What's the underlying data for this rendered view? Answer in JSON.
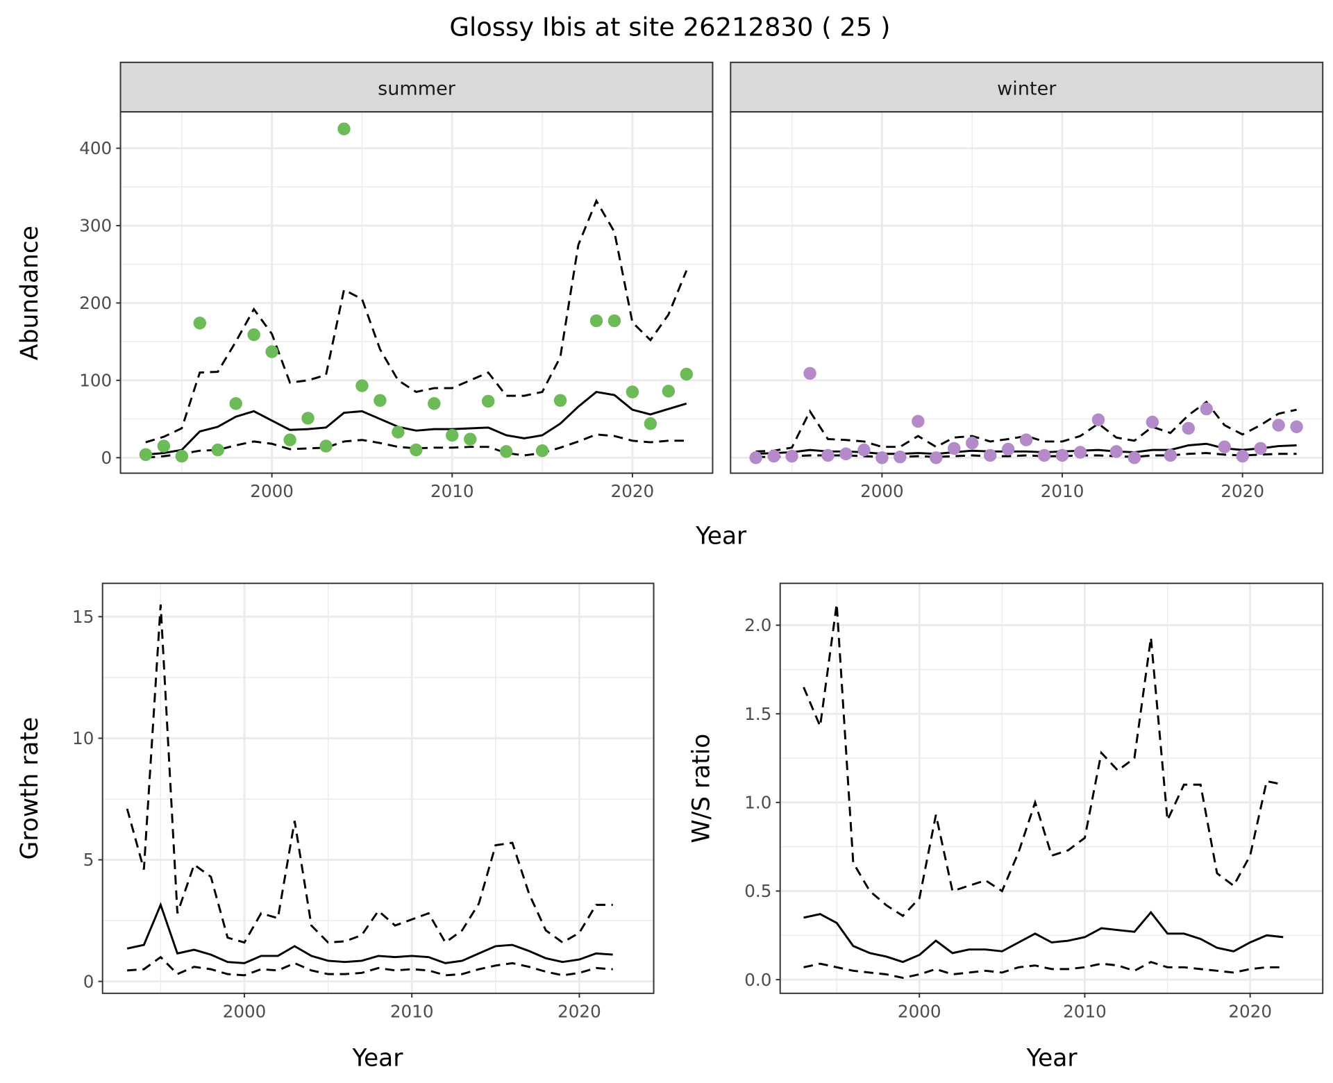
{
  "title": "Glossy Ibis at site 26212830 ( 25 )",
  "colors": {
    "summer": "#6cbb58",
    "winter": "#b48ac8",
    "line": "#000000"
  },
  "chart_data": [
    {
      "type": "line",
      "id": "abundance",
      "facets": [
        "summer",
        "winter"
      ],
      "xlabel": "Year",
      "ylabel": "Abundance",
      "xlim": [
        1991.6,
        2024.45
      ],
      "ylim": [
        -20,
        447
      ],
      "xticks": [
        2000,
        2010,
        2020
      ],
      "yticks": [
        0,
        100,
        200,
        300,
        400
      ],
      "years": [
        1993,
        1994,
        1995,
        1996,
        1997,
        1998,
        1999,
        2000,
        2001,
        2002,
        2003,
        2004,
        2005,
        2006,
        2007,
        2008,
        2009,
        2010,
        2011,
        2012,
        2013,
        2014,
        2015,
        2016,
        2017,
        2018,
        2019,
        2020,
        2021,
        2022,
        2023
      ],
      "panels": {
        "summer": {
          "label": "summer",
          "points": [
            4,
            15,
            2,
            174,
            10,
            70,
            159,
            137,
            23,
            51,
            15,
            425,
            93,
            74,
            33,
            10,
            70,
            29,
            24,
            73,
            8,
            null,
            9,
            74,
            null,
            177,
            177,
            85,
            44,
            86,
            108
          ],
          "mean": [
            4,
            6,
            10,
            34,
            40,
            53,
            60,
            48,
            36,
            37,
            39,
            58,
            60,
            50,
            40,
            35,
            37,
            37,
            38,
            39,
            29,
            25,
            29,
            44,
            66,
            85,
            81,
            62,
            56,
            63,
            70
          ],
          "upper": [
            20,
            27,
            38,
            110,
            111,
            150,
            192,
            160,
            97,
            100,
            107,
            217,
            205,
            140,
            100,
            85,
            90,
            90,
            100,
            110,
            80,
            80,
            85,
            130,
            275,
            332,
            292,
            175,
            152,
            185,
            242
          ],
          "lower": [
            0,
            2,
            5,
            9,
            10,
            16,
            21,
            18,
            11,
            12,
            13,
            21,
            23,
            19,
            14,
            12,
            13,
            13,
            14,
            14,
            6,
            3,
            6,
            13,
            21,
            30,
            28,
            22,
            20,
            22,
            22
          ]
        },
        "winter": {
          "label": "winter",
          "points": [
            0,
            2,
            2,
            109,
            3,
            5,
            10,
            0,
            1,
            47,
            0,
            12,
            19,
            3,
            11,
            23,
            3,
            3,
            7,
            49,
            8,
            0,
            46,
            3,
            38,
            63,
            14,
            2,
            12,
            42,
            40
          ],
          "mean": [
            5,
            6,
            7,
            10,
            8,
            8,
            7,
            5,
            5,
            6,
            5,
            7,
            9,
            8,
            8,
            8,
            7,
            8,
            9,
            10,
            8,
            7,
            10,
            10,
            16,
            18,
            12,
            10,
            12,
            15,
            16
          ],
          "upper": [
            8,
            9,
            13,
            60,
            24,
            23,
            21,
            14,
            14,
            28,
            14,
            26,
            28,
            21,
            24,
            28,
            21,
            21,
            28,
            44,
            26,
            22,
            40,
            32,
            55,
            72,
            42,
            30,
            42,
            57,
            62
          ],
          "lower": [
            1,
            1,
            2,
            3,
            3,
            3,
            2,
            1,
            1,
            2,
            1,
            2,
            3,
            2,
            2,
            3,
            2,
            2,
            3,
            3,
            2,
            1,
            3,
            3,
            5,
            6,
            4,
            3,
            4,
            5,
            5
          ]
        }
      }
    },
    {
      "type": "line",
      "id": "growth",
      "xlabel": "Year",
      "ylabel": "Growth rate",
      "xlim": [
        1991.53,
        2024.44
      ],
      "ylim": [
        -0.49,
        16.37
      ],
      "xticks": [
        2000,
        2010,
        2020
      ],
      "yticks": [
        0,
        5,
        10,
        15
      ],
      "years": [
        1993,
        1994,
        1995,
        1996,
        1997,
        1998,
        1999,
        2000,
        2001,
        2002,
        2003,
        2004,
        2005,
        2006,
        2007,
        2008,
        2009,
        2010,
        2011,
        2012,
        2013,
        2014,
        2015,
        2016,
        2017,
        2018,
        2019,
        2020,
        2021,
        2022
      ],
      "mean": [
        1.35,
        1.5,
        3.15,
        1.15,
        1.3,
        1.1,
        0.8,
        0.75,
        1.05,
        1.05,
        1.45,
        1.05,
        0.85,
        0.8,
        0.85,
        1.05,
        1.0,
        1.05,
        1.0,
        0.75,
        0.85,
        1.15,
        1.45,
        1.5,
        1.25,
        0.95,
        0.8,
        0.9,
        1.15,
        1.1
      ],
      "upper": [
        7.1,
        4.6,
        15.5,
        2.8,
        4.8,
        4.3,
        1.8,
        1.6,
        2.8,
        2.6,
        6.6,
        2.3,
        1.6,
        1.65,
        1.9,
        2.9,
        2.3,
        2.55,
        2.8,
        1.6,
        2.1,
        3.2,
        5.6,
        5.7,
        3.6,
        2.1,
        1.6,
        2.0,
        3.15,
        3.15
      ],
      "lower": [
        0.45,
        0.5,
        1.0,
        0.3,
        0.6,
        0.5,
        0.3,
        0.25,
        0.5,
        0.45,
        0.75,
        0.45,
        0.3,
        0.3,
        0.35,
        0.55,
        0.45,
        0.5,
        0.45,
        0.25,
        0.3,
        0.5,
        0.65,
        0.75,
        0.6,
        0.4,
        0.25,
        0.35,
        0.55,
        0.5
      ]
    },
    {
      "type": "line",
      "id": "ratio",
      "xlabel": "Year",
      "ylabel": "W/S ratio",
      "xlim": [
        1991.58,
        2024.39
      ],
      "ylim": [
        -0.077,
        2.236
      ],
      "xticks": [
        2000,
        2010,
        2020
      ],
      "yticks": [
        0.0,
        0.5,
        1.0,
        1.5,
        2.0
      ],
      "ytick_labels": [
        "0.0",
        "0.5",
        "1.0",
        "1.5",
        "2.0"
      ],
      "years": [
        1993,
        1994,
        1995,
        1996,
        1997,
        1998,
        1999,
        2000,
        2001,
        2002,
        2003,
        2004,
        2005,
        2006,
        2007,
        2008,
        2009,
        2010,
        2011,
        2012,
        2013,
        2014,
        2015,
        2016,
        2017,
        2018,
        2019,
        2020,
        2021,
        2022
      ],
      "mean": [
        0.35,
        0.37,
        0.32,
        0.19,
        0.15,
        0.13,
        0.1,
        0.14,
        0.22,
        0.15,
        0.17,
        0.17,
        0.16,
        0.21,
        0.26,
        0.21,
        0.22,
        0.24,
        0.29,
        0.28,
        0.27,
        0.38,
        0.26,
        0.26,
        0.23,
        0.18,
        0.16,
        0.21,
        0.25,
        0.24
      ],
      "upper": [
        1.65,
        1.43,
        2.12,
        0.66,
        0.5,
        0.42,
        0.36,
        0.46,
        0.93,
        0.5,
        0.53,
        0.56,
        0.5,
        0.72,
        1.0,
        0.7,
        0.73,
        0.8,
        1.28,
        1.18,
        1.25,
        1.93,
        0.9,
        1.1,
        1.1,
        0.6,
        0.53,
        0.7,
        1.12,
        1.1
      ],
      "lower": [
        0.07,
        0.09,
        0.07,
        0.05,
        0.04,
        0.03,
        0.01,
        0.03,
        0.06,
        0.03,
        0.04,
        0.05,
        0.04,
        0.07,
        0.08,
        0.06,
        0.06,
        0.07,
        0.09,
        0.08,
        0.05,
        0.1,
        0.07,
        0.07,
        0.06,
        0.05,
        0.04,
        0.06,
        0.07,
        0.07
      ]
    }
  ]
}
